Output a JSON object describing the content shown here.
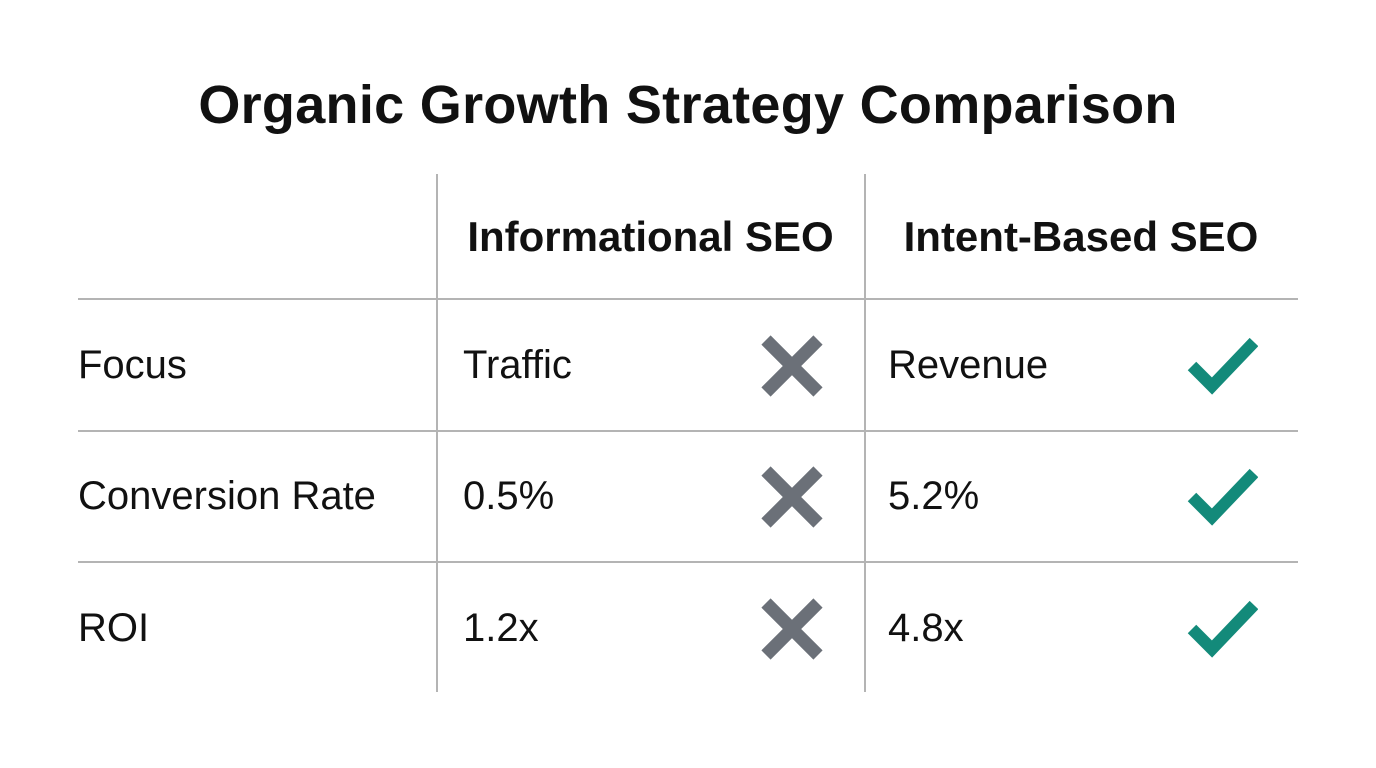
{
  "chart_data": {
    "type": "table",
    "title": "Organic Growth Strategy Comparison",
    "columns": [
      "",
      "Informational SEO",
      "Intent-Based SEO"
    ],
    "rows": [
      {
        "label": "Focus",
        "values": [
          "Traffic",
          "Revenue"
        ],
        "marks": [
          "cross",
          "check"
        ]
      },
      {
        "label": "Conversion Rate",
        "values": [
          "0.5%",
          "5.2%"
        ],
        "marks": [
          "cross",
          "check"
        ]
      },
      {
        "label": "ROI",
        "values": [
          "1.2x",
          "4.8x"
        ],
        "marks": [
          "cross",
          "check"
        ]
      }
    ]
  },
  "colors": {
    "cross": "#6b7078",
    "check": "#138a7a",
    "grid": "#b4b4b4",
    "text": "#111111"
  },
  "icons": {
    "negative": "cross-icon",
    "positive": "check-icon"
  }
}
